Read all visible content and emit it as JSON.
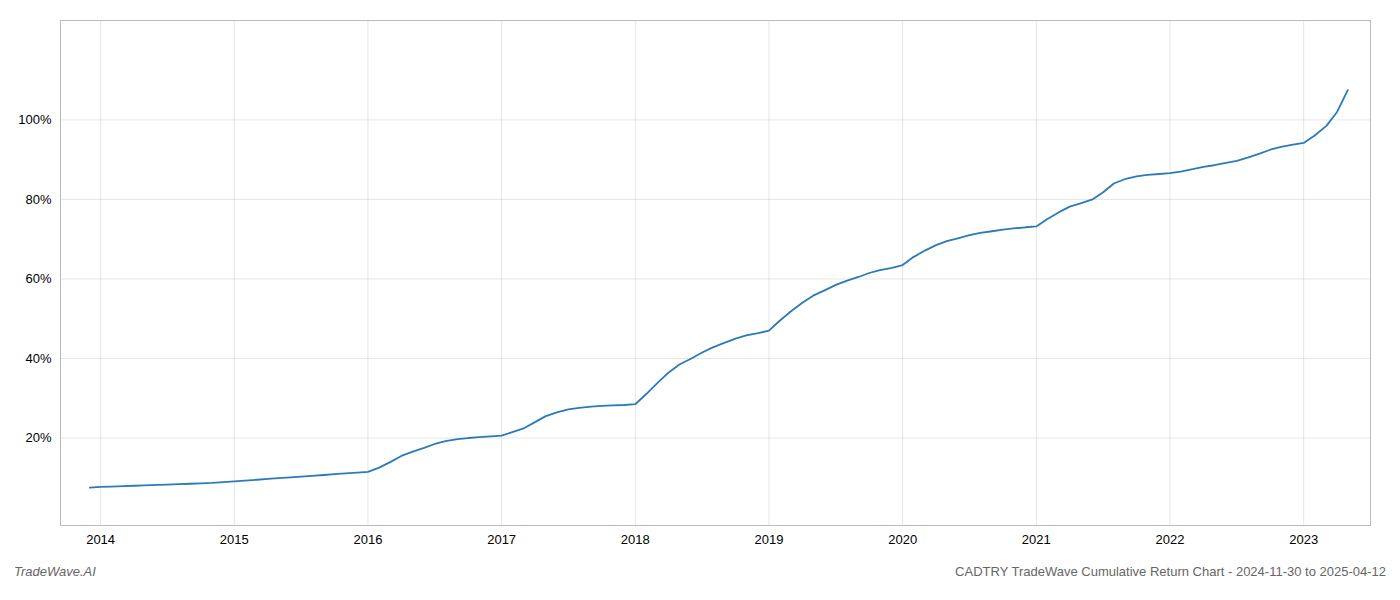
{
  "chart_data": {
    "type": "line",
    "title": "CADTRY TradeWave Cumulative Return Chart - 2024-11-30 to 2025-04-12",
    "annotations": [
      "TradeWave.AI"
    ],
    "color": "#2b7bb9",
    "grid": true,
    "xlim": [
      2013.7,
      2023.5
    ],
    "xticks": [
      2014,
      2015,
      2016,
      2017,
      2018,
      2019,
      2020,
      2021,
      2022,
      2023
    ],
    "ylim": [
      -0.02,
      1.25
    ],
    "yticks": [
      {
        "value": 0.2,
        "label": "20%"
      },
      {
        "value": 0.4,
        "label": "40%"
      },
      {
        "value": 0.6,
        "label": "60%"
      },
      {
        "value": 0.8,
        "label": "80%"
      },
      {
        "value": 1.0,
        "label": "100%"
      }
    ],
    "x": [
      2013.92,
      2014.0,
      2014.08,
      2014.17,
      2014.25,
      2014.33,
      2014.42,
      2014.5,
      2014.58,
      2014.67,
      2014.75,
      2014.83,
      2014.92,
      2015.0,
      2015.08,
      2015.17,
      2015.25,
      2015.33,
      2015.42,
      2015.5,
      2015.58,
      2015.67,
      2015.75,
      2015.83,
      2015.92,
      2016.0,
      2016.08,
      2016.17,
      2016.25,
      2016.33,
      2016.42,
      2016.5,
      2016.58,
      2016.67,
      2016.75,
      2016.83,
      2016.92,
      2017.0,
      2017.08,
      2017.17,
      2017.25,
      2017.33,
      2017.42,
      2017.5,
      2017.58,
      2017.67,
      2017.75,
      2017.83,
      2017.92,
      2018.0,
      2018.08,
      2018.17,
      2018.25,
      2018.33,
      2018.42,
      2018.5,
      2018.58,
      2018.67,
      2018.75,
      2018.83,
      2018.92,
      2019.0,
      2019.08,
      2019.17,
      2019.25,
      2019.33,
      2019.42,
      2019.5,
      2019.58,
      2019.67,
      2019.75,
      2019.83,
      2019.92,
      2020.0,
      2020.08,
      2020.17,
      2020.25,
      2020.33,
      2020.42,
      2020.5,
      2020.58,
      2020.67,
      2020.75,
      2020.83,
      2020.92,
      2021.0,
      2021.08,
      2021.17,
      2021.25,
      2021.33,
      2021.42,
      2021.5,
      2021.58,
      2021.67,
      2021.75,
      2021.83,
      2021.92,
      2022.0,
      2022.08,
      2022.17,
      2022.25,
      2022.33,
      2022.42,
      2022.5,
      2022.58,
      2022.67,
      2022.75,
      2022.83,
      2022.92,
      2023.0,
      2023.08,
      2023.17,
      2023.25,
      2023.33
    ],
    "values": [
      0.075,
      0.077,
      0.078,
      0.079,
      0.08,
      0.081,
      0.082,
      0.083,
      0.084,
      0.085,
      0.086,
      0.087,
      0.089,
      0.091,
      0.093,
      0.095,
      0.097,
      0.099,
      0.101,
      0.103,
      0.105,
      0.107,
      0.109,
      0.111,
      0.113,
      0.115,
      0.125,
      0.14,
      0.155,
      0.165,
      0.175,
      0.185,
      0.192,
      0.197,
      0.2,
      0.202,
      0.204,
      0.206,
      0.215,
      0.225,
      0.24,
      0.255,
      0.265,
      0.272,
      0.276,
      0.279,
      0.281,
      0.282,
      0.283,
      0.285,
      0.31,
      0.34,
      0.365,
      0.385,
      0.4,
      0.415,
      0.428,
      0.44,
      0.45,
      0.458,
      0.464,
      0.47,
      0.495,
      0.52,
      0.54,
      0.558,
      0.572,
      0.585,
      0.595,
      0.605,
      0.615,
      0.622,
      0.628,
      0.635,
      0.655,
      0.672,
      0.685,
      0.695,
      0.703,
      0.71,
      0.716,
      0.72,
      0.724,
      0.727,
      0.73,
      0.732,
      0.75,
      0.768,
      0.782,
      0.79,
      0.8,
      0.818,
      0.84,
      0.852,
      0.858,
      0.862,
      0.864,
      0.866,
      0.87,
      0.876,
      0.882,
      0.886,
      0.892,
      0.897,
      0.905,
      0.915,
      0.925,
      0.932,
      0.938,
      0.942,
      0.96,
      0.985,
      1.02,
      1.075
    ]
  }
}
